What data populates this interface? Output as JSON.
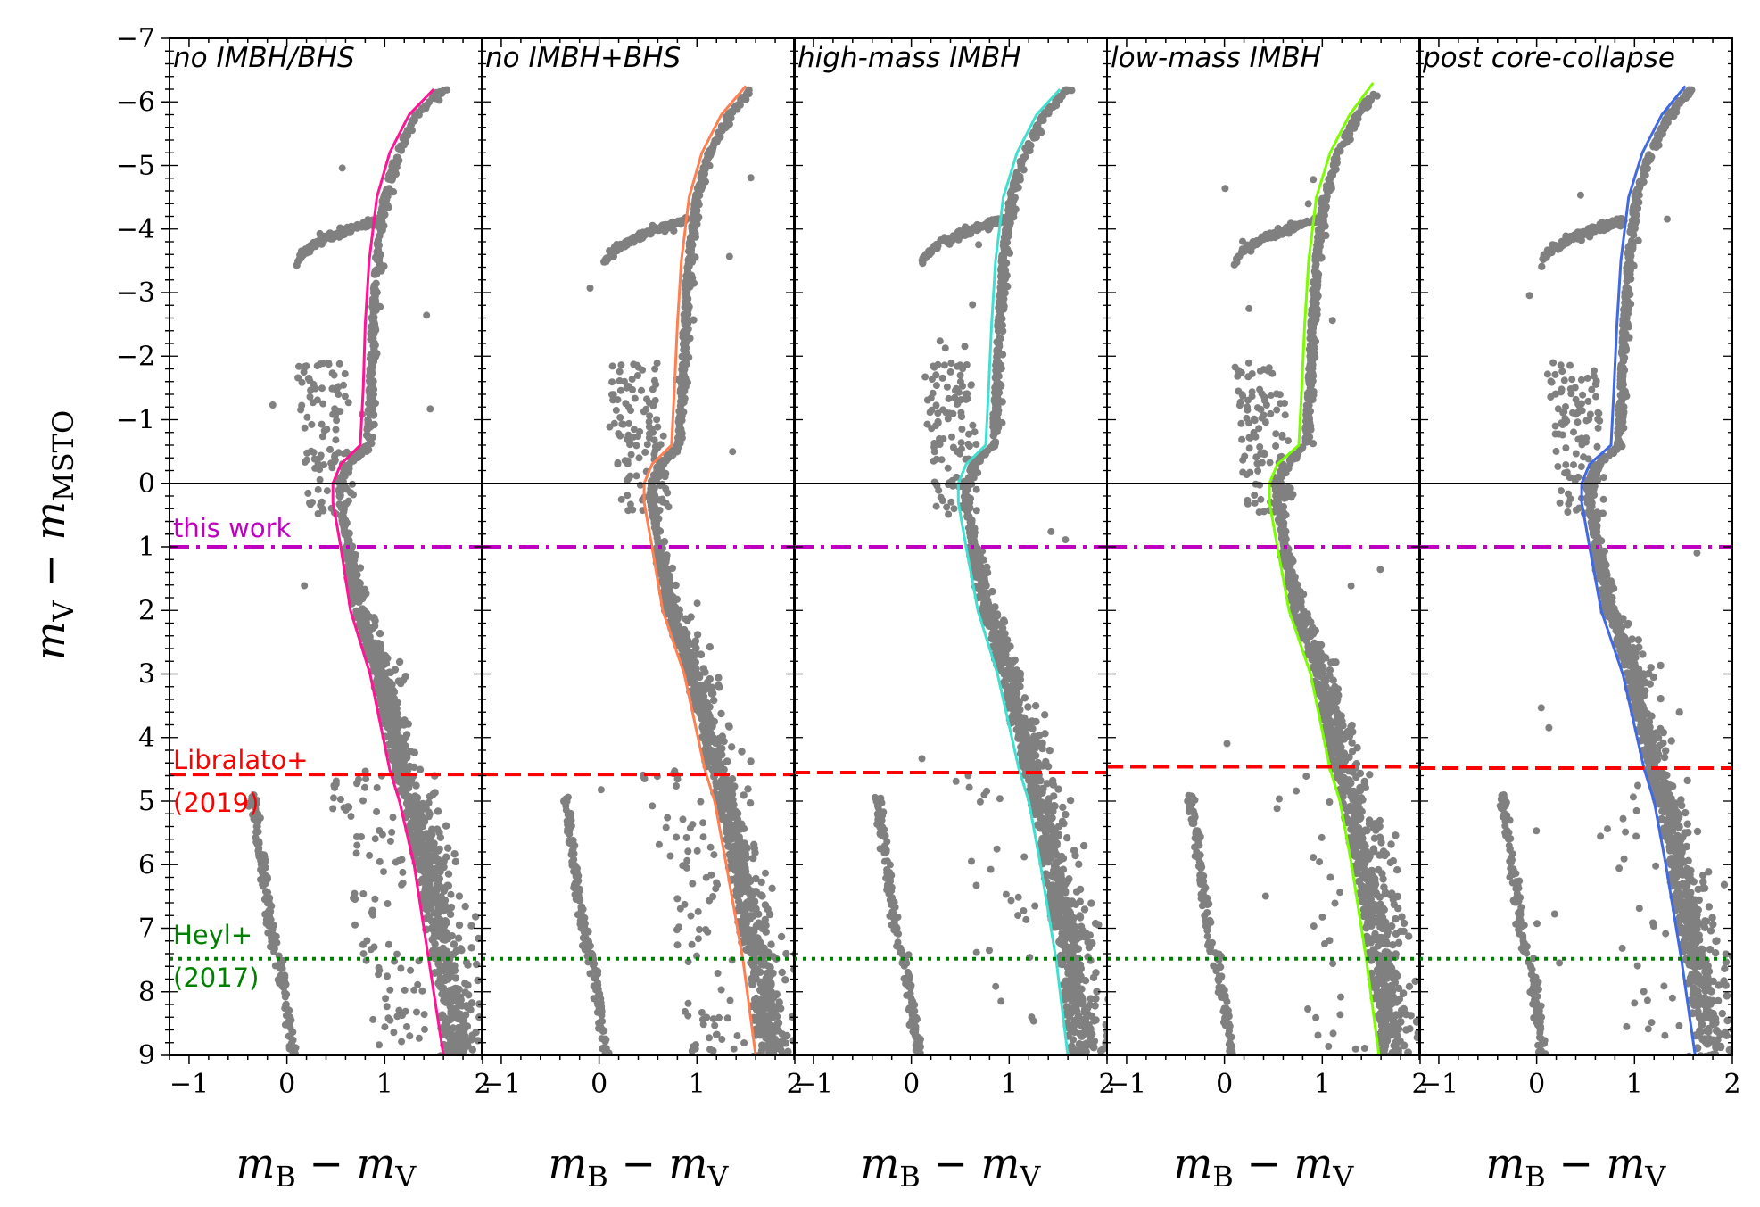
{
  "chart_data": {
    "type": "scatter",
    "figure_kind": "color-magnitude diagram, 5 panels sharing y axis",
    "y_axis": {
      "label": "m_V − m_MSTO",
      "label_main": "m",
      "label_sub1": "V",
      "label_minus": " − ",
      "label_main2": "m",
      "label_sub2": "MSTO",
      "ylim": [
        9,
        -7
      ],
      "ticks": [
        -7,
        -6,
        -5,
        -4,
        -3,
        -2,
        -1,
        0,
        1,
        2,
        3,
        4,
        5,
        6,
        7,
        8,
        9
      ],
      "tick_labels": [
        "−7",
        "−6",
        "−5",
        "−4",
        "−3",
        "−2",
        "−1",
        "0",
        "1",
        "2",
        "3",
        "4",
        "5",
        "6",
        "7",
        "8",
        "9"
      ],
      "inverted": true
    },
    "x_axis": {
      "label": "m_B − m_V",
      "label_main": "m",
      "label_sub1": "B",
      "label_minus": " − ",
      "label_main2": "m",
      "label_sub2": "V",
      "xlim": [
        -1.2,
        2.0
      ],
      "ticks": [
        -1,
        0,
        1,
        2
      ],
      "tick_labels": [
        "−1",
        "0",
        "1",
        "2"
      ]
    },
    "reference_line": {
      "y": 0,
      "color": "#000000"
    },
    "limits": [
      {
        "name": "this-work",
        "label_lines": [
          "this work"
        ],
        "color": "#c000c0",
        "style": "dashdot",
        "y_per_panel": [
          1.0,
          1.0,
          1.0,
          1.0,
          1.0
        ]
      },
      {
        "name": "libralato",
        "label_lines": [
          "Libralato+",
          "(2019)"
        ],
        "color": "#ff0000",
        "style": "dashed",
        "y_per_panel": [
          4.58,
          4.58,
          4.55,
          4.46,
          4.48
        ]
      },
      {
        "name": "heyl",
        "label_lines": [
          "Heyl+",
          "(2017)"
        ],
        "color": "#008000",
        "style": "dotted",
        "y_per_panel": [
          7.48,
          7.48,
          7.48,
          7.48,
          7.48
        ]
      }
    ],
    "panels": [
      {
        "title": "no IMBH/BHS",
        "fit_color": "#ff1493",
        "fit_curve": [
          [
            1.6,
            9.0
          ],
          [
            1.45,
            7.5
          ],
          [
            1.3,
            6.0
          ],
          [
            1.15,
            5.0
          ],
          [
            1.05,
            4.5
          ],
          [
            0.85,
            3.0
          ],
          [
            0.65,
            2.0
          ],
          [
            0.55,
            1.0
          ],
          [
            0.47,
            0.3
          ],
          [
            0.47,
            0.0
          ],
          [
            0.55,
            -0.3
          ],
          [
            0.75,
            -0.6
          ],
          [
            0.78,
            -1.5
          ],
          [
            0.8,
            -2.5
          ],
          [
            0.84,
            -3.5
          ],
          [
            0.92,
            -4.5
          ],
          [
            1.05,
            -5.2
          ],
          [
            1.25,
            -5.8
          ],
          [
            1.5,
            -6.2
          ]
        ],
        "red_clump_x0": 0.1,
        "blue_x_shift": 0.0
      },
      {
        "title": "no IMBH+BHS",
        "fit_color": "#ff7f50",
        "fit_curve": [
          [
            1.6,
            9.0
          ],
          [
            1.47,
            7.5
          ],
          [
            1.3,
            6.0
          ],
          [
            1.18,
            5.0
          ],
          [
            1.08,
            4.5
          ],
          [
            0.87,
            3.0
          ],
          [
            0.65,
            2.0
          ],
          [
            0.54,
            1.0
          ],
          [
            0.46,
            0.3
          ],
          [
            0.46,
            0.0
          ],
          [
            0.54,
            -0.3
          ],
          [
            0.74,
            -0.6
          ],
          [
            0.77,
            -1.5
          ],
          [
            0.8,
            -2.5
          ],
          [
            0.84,
            -3.5
          ],
          [
            0.92,
            -4.5
          ],
          [
            1.05,
            -5.2
          ],
          [
            1.25,
            -5.8
          ],
          [
            1.5,
            -6.25
          ]
        ],
        "red_clump_x0": 0.05,
        "blue_x_shift": 0.0
      },
      {
        "title": "high-mass IMBH",
        "fit_color": "#40e0d0",
        "fit_curve": [
          [
            1.6,
            9.0
          ],
          [
            1.48,
            7.5
          ],
          [
            1.32,
            6.0
          ],
          [
            1.2,
            5.0
          ],
          [
            1.1,
            4.5
          ],
          [
            0.88,
            3.0
          ],
          [
            0.68,
            2.0
          ],
          [
            0.56,
            1.0
          ],
          [
            0.48,
            0.3
          ],
          [
            0.48,
            0.0
          ],
          [
            0.56,
            -0.3
          ],
          [
            0.76,
            -0.6
          ],
          [
            0.79,
            -1.5
          ],
          [
            0.82,
            -2.5
          ],
          [
            0.86,
            -3.5
          ],
          [
            0.94,
            -4.5
          ],
          [
            1.08,
            -5.2
          ],
          [
            1.28,
            -5.8
          ],
          [
            1.52,
            -6.2
          ]
        ],
        "red_clump_x0": 0.1,
        "blue_x_shift": 0.0
      },
      {
        "title": "low-mass IMBH",
        "fit_color": "#7cfc00",
        "fit_curve": [
          [
            1.58,
            9.0
          ],
          [
            1.45,
            7.5
          ],
          [
            1.3,
            6.0
          ],
          [
            1.18,
            5.0
          ],
          [
            1.08,
            4.5
          ],
          [
            0.88,
            3.0
          ],
          [
            0.66,
            2.0
          ],
          [
            0.54,
            1.0
          ],
          [
            0.46,
            0.3
          ],
          [
            0.46,
            0.0
          ],
          [
            0.54,
            -0.3
          ],
          [
            0.76,
            -0.6
          ],
          [
            0.79,
            -1.5
          ],
          [
            0.82,
            -2.5
          ],
          [
            0.86,
            -3.5
          ],
          [
            0.94,
            -4.5
          ],
          [
            1.08,
            -5.2
          ],
          [
            1.28,
            -5.8
          ],
          [
            1.52,
            -6.3
          ]
        ],
        "red_clump_x0": 0.1,
        "blue_x_shift": 0.0
      },
      {
        "title": "post core-collapse",
        "fit_color": "#4169e1",
        "fit_curve": [
          [
            1.62,
            9.0
          ],
          [
            1.48,
            7.5
          ],
          [
            1.32,
            6.0
          ],
          [
            1.2,
            5.0
          ],
          [
            1.1,
            4.5
          ],
          [
            0.88,
            3.0
          ],
          [
            0.66,
            2.0
          ],
          [
            0.54,
            1.0
          ],
          [
            0.46,
            0.3
          ],
          [
            0.46,
            0.0
          ],
          [
            0.54,
            -0.3
          ],
          [
            0.76,
            -0.6
          ],
          [
            0.79,
            -1.5
          ],
          [
            0.82,
            -2.5
          ],
          [
            0.86,
            -3.5
          ],
          [
            0.94,
            -4.5
          ],
          [
            1.08,
            -5.2
          ],
          [
            1.28,
            -5.8
          ],
          [
            1.52,
            -6.25
          ]
        ],
        "red_clump_x0": 0.05,
        "blue_x_shift": 0.0
      }
    ],
    "scatter_color": "#808080"
  }
}
